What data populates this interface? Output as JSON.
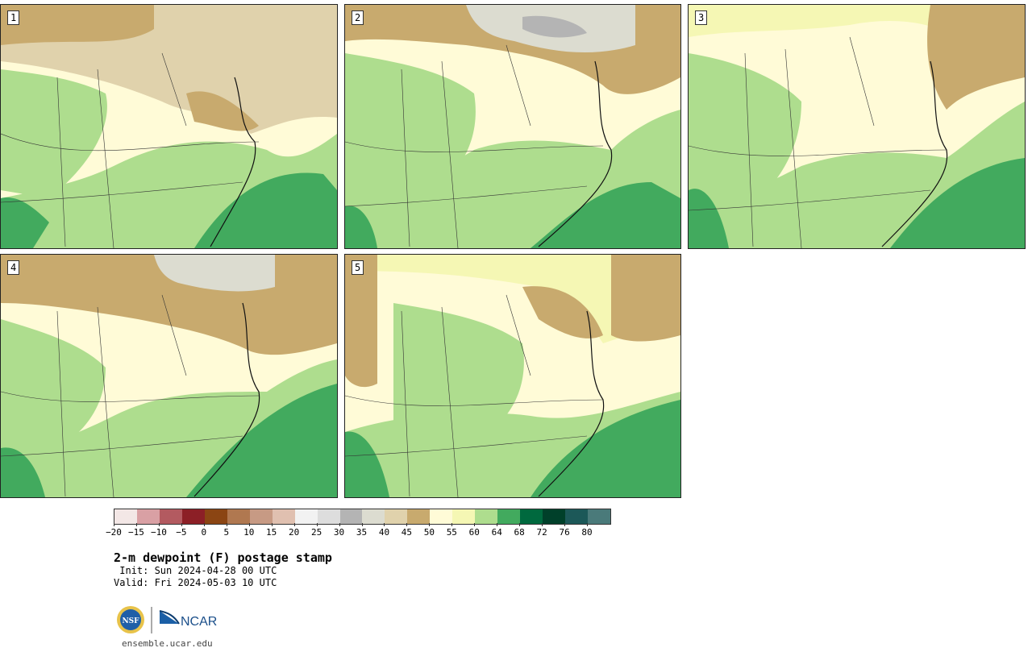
{
  "panels": [
    {
      "label": "1"
    },
    {
      "label": "2"
    },
    {
      "label": "3"
    },
    {
      "label": "4"
    },
    {
      "label": "5"
    }
  ],
  "colorbar": {
    "colors": [
      "#f3e7e6",
      "#d9a0a4",
      "#b35a60",
      "#8c1f26",
      "#8b4513",
      "#b07850",
      "#c79a84",
      "#e0c0b0",
      "#f2f2f2",
      "#dddddd",
      "#b4b4b4",
      "#dcdcd0",
      "#e0d2ac",
      "#c8aa6e",
      "#fffbd7",
      "#f5f7b4",
      "#aedd8e",
      "#42aa5e",
      "#00693e",
      "#00402a",
      "#1c5858",
      "#4a7a7a"
    ],
    "tick_labels": [
      "−20",
      "−15",
      "−10",
      "−5",
      "0",
      "5",
      "10",
      "15",
      "20",
      "25",
      "30",
      "35",
      "40",
      "45",
      "50",
      "55",
      "60",
      "64",
      "68",
      "72",
      "76",
      "80"
    ]
  },
  "title": "2-m dewpoint (F) postage stamp",
  "init": " Init: Sun 2024-04-28 00 UTC",
  "valid": "Valid: Fri 2024-05-03 10 UTC",
  "logos": {
    "nsf": "NSF",
    "ncar": "NCAR"
  },
  "site": "ensemble.ucar.edu"
}
